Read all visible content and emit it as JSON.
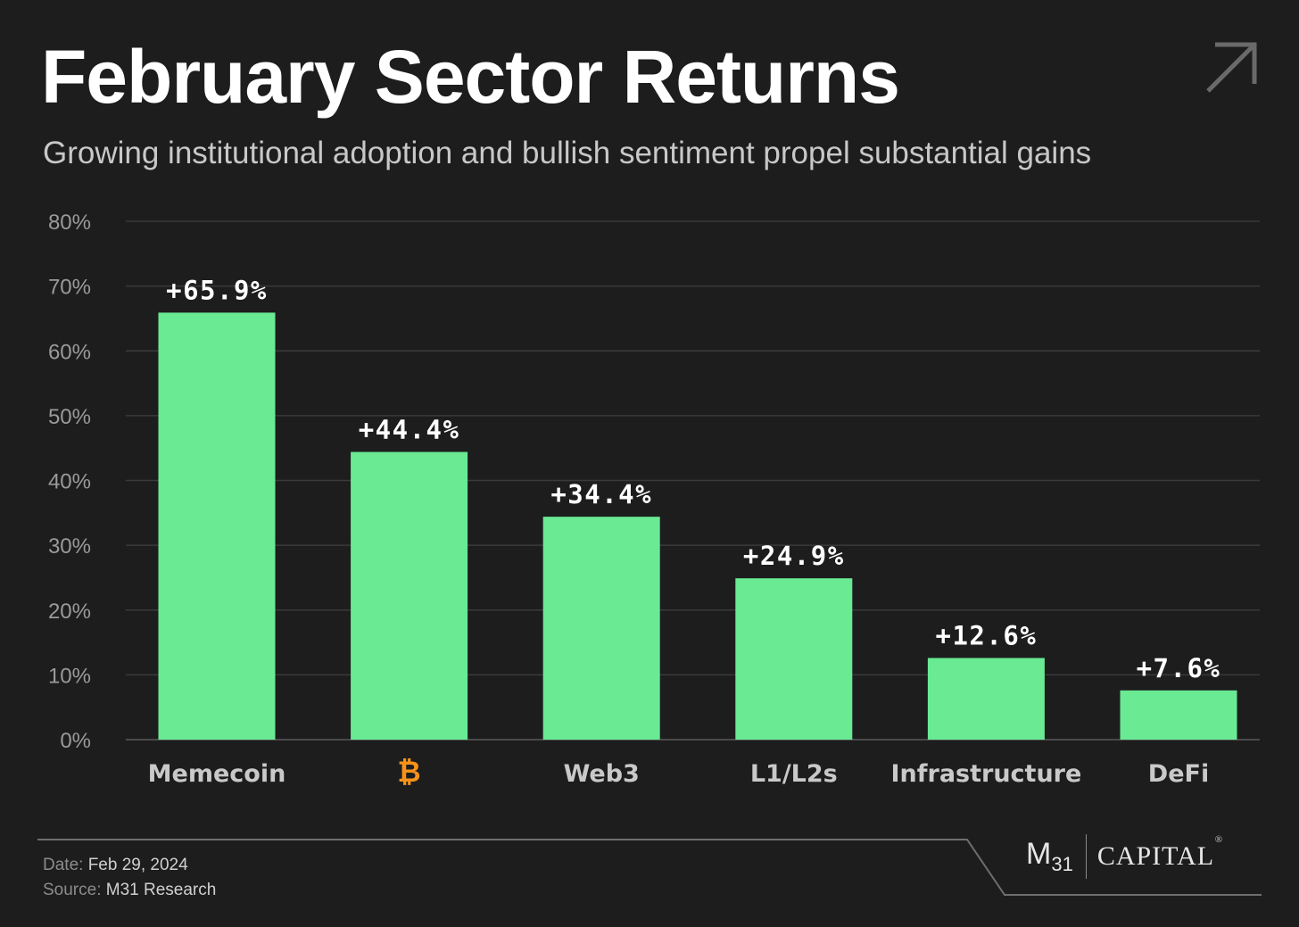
{
  "header": {
    "title": "February Sector Returns",
    "subtitle": "Growing institutional adoption and bullish sentiment propel substantial gains",
    "corner_icon": "arrow-up-right-icon"
  },
  "chart_data": {
    "type": "bar",
    "categories": [
      "Memecoin",
      "₿",
      "Web3",
      "L1/L2s",
      "Infrastructure",
      "DeFi"
    ],
    "values": [
      65.9,
      44.4,
      34.4,
      24.9,
      12.6,
      7.6
    ],
    "data_labels": [
      "+65.9%",
      "+44.4%",
      "+34.4%",
      "+24.9%",
      "+12.6%",
      "+7.6%"
    ],
    "title": "February Sector Returns",
    "ylim": [
      0,
      80
    ],
    "yticks": [
      0,
      10,
      20,
      30,
      40,
      50,
      60,
      70,
      80
    ],
    "ytick_labels": [
      "0%",
      "10%",
      "20%",
      "30%",
      "40%",
      "50%",
      "60%",
      "70%",
      "80%"
    ],
    "grid": true,
    "legend": "none",
    "colors": {
      "bar": "#69ea93",
      "bitcoin": "#f7931a",
      "grid": "#3a3a3c",
      "axis_text": "#9a9a9a",
      "category_text": "#c9c9c9",
      "label_text": "#ffffff"
    },
    "highlight_category_index": 1
  },
  "footer": {
    "date_key": "Date:",
    "date_value": "Feb 29, 2024",
    "source_key": "Source:",
    "source_value": "M31 Research"
  },
  "logo": {
    "m": "M",
    "num": "31",
    "text": "CAPITAL",
    "reg": "®"
  }
}
